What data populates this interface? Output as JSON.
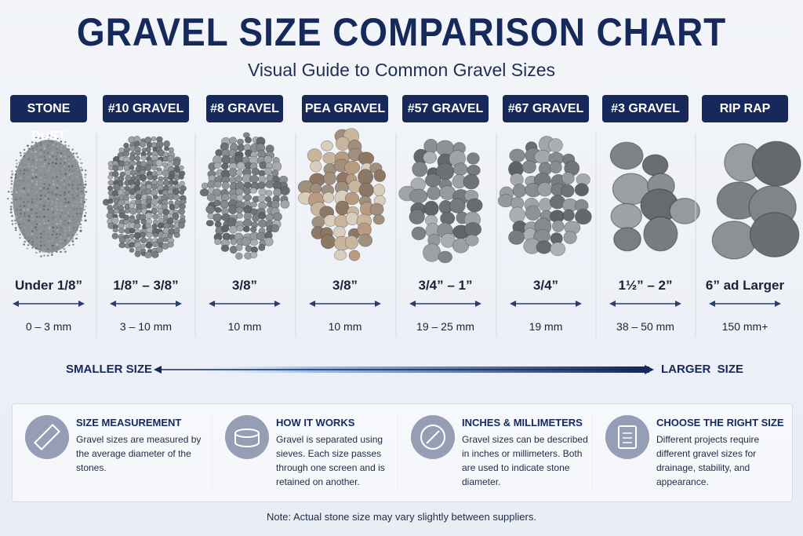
{
  "header": {
    "title": "GRAVEL SIZE COMPARISON CHART",
    "subtitle": "Visual Guide to Common Gravel Sizes"
  },
  "columns": [
    {
      "label": "STONE DUST",
      "inches": "Under 1/8”",
      "mm": "0 – 3 mm"
    },
    {
      "label": "#10 GRAVEL",
      "inches": "1/8” – 3/8”",
      "mm": "3 – 10 mm"
    },
    {
      "label": "#8 GRAVEL",
      "inches": "3/8”",
      "mm": "10 mm"
    },
    {
      "label": "PEA GRAVEL",
      "inches": "3/8”",
      "mm": "10 mm"
    },
    {
      "label": "#57 GRAVEL",
      "inches": "3/4” – 1”",
      "mm": "19 – 25 mm"
    },
    {
      "label": "#67 GRAVEL",
      "inches": "3/4”",
      "mm": "19 mm"
    },
    {
      "label": "#3 GRAVEL",
      "inches": "1½” – 2”",
      "mm": "38 – 50 mm"
    },
    {
      "label": "RIP RAP",
      "inches": "6” ad Larger",
      "mm": "150 mm+"
    }
  ],
  "scale": {
    "smaller": "SMALLER SIZE",
    "larger": "LARGER  SIZE"
  },
  "cards": [
    {
      "title": "SIZE MEASUREMENT",
      "text": "Gravel sizes are measured by the average diameter of the stones."
    },
    {
      "title": "HOW IT WORKS",
      "text": "Gravel is separated using sieves. Each size passes through one screen and is retained on another."
    },
    {
      "title": "INCHES & MILLIMETERS",
      "text": "Gravel sizes can be described in inches or millimeters. Both are used to indicate stone diameter."
    },
    {
      "title": "CHOOSE THE RIGHT SIZE",
      "text": "Different projects require different gravel sizes for drainage, stability, and appearance."
    }
  ],
  "note": "Note: Actual stone size may vary slightly between suppliers."
}
